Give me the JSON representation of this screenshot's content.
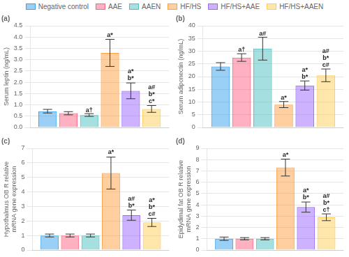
{
  "chart_data": [
    {
      "type": "bar",
      "title": "(a)",
      "ylabel": "Serum leptin (ng/mL)",
      "categories": [
        null
      ],
      "series": [
        {
          "name": "Negative control",
          "color": "#36a2eb",
          "values": [
            0.72
          ],
          "errors": [
            0.08
          ]
        },
        {
          "name": "AAE",
          "color": "#ff6384",
          "values": [
            0.63
          ],
          "errors": [
            0.07
          ]
        },
        {
          "name": "AAEN",
          "color": "#4bc0c0",
          "values": [
            0.55
          ],
          "errors": [
            0.06
          ]
        },
        {
          "name": "HF/HS",
          "color": "#ff9f40",
          "values": [
            3.3
          ],
          "errors": [
            0.6
          ]
        },
        {
          "name": "HF/HS+AAE",
          "color": "#9966ff",
          "values": [
            1.62
          ],
          "errors": [
            0.35
          ]
        },
        {
          "name": "HF/HS+AAEN",
          "color": "#ffcd56",
          "values": [
            0.82
          ],
          "errors": [
            0.15
          ]
        }
      ],
      "ylim": [
        0,
        4.5
      ],
      "yticks": [
        {
          "value": 0,
          "label": "0.0"
        },
        0.5,
        {
          "value": 1,
          "label": "1.0"
        },
        1.5,
        {
          "value": 2,
          "label": "2.0"
        },
        2.5,
        {
          "value": 3,
          "label": "3.0"
        },
        3.5,
        {
          "value": 4,
          "label": "4.0"
        },
        4.5
      ],
      "grid": true,
      "legend": "top",
      "tick_labels": "y",
      "annotations": [
        {
          "text": "a†",
          "series": "AAEN",
          "y": 0.61
        },
        {
          "text": "a*",
          "series": "HF/HS",
          "y": 3.95
        },
        {
          "text": "a*\nb*",
          "series": "HF/HS+AAE",
          "y": 2.02
        },
        {
          "text": "a#\nb*\nc*",
          "series": "HF/HS+AAEN",
          "y": 1.02
        }
      ]
    },
    {
      "type": "bar",
      "title": "(b)",
      "ylabel": "Serum adiponectin (ng/mL)",
      "categories": [
        null
      ],
      "series": [
        {
          "name": "Negative control",
          "color": "#36a2eb",
          "values": [
            24.0
          ],
          "errors": [
            1.5
          ]
        },
        {
          "name": "AAE",
          "color": "#ff6384",
          "values": [
            27.5
          ],
          "errors": [
            1.5
          ]
        },
        {
          "name": "AAEN",
          "color": "#4bc0c0",
          "values": [
            31.0
          ],
          "errors": [
            4.5
          ]
        },
        {
          "name": "HF/HS",
          "color": "#ff9f40",
          "values": [
            9.0
          ],
          "errors": [
            1.2
          ]
        },
        {
          "name": "HF/HS+AAE",
          "color": "#9966ff",
          "values": [
            16.5
          ],
          "errors": [
            1.8
          ]
        },
        {
          "name": "HF/HS+AAEN",
          "color": "#ffcd56",
          "values": [
            20.5
          ],
          "errors": [
            2.5
          ]
        }
      ],
      "ylim": [
        0,
        40
      ],
      "yticks": [
        0,
        5,
        10,
        15,
        20,
        25,
        30,
        35,
        40
      ],
      "grid": true,
      "legend": "top",
      "tick_labels": "y",
      "annotations": [
        {
          "text": "a†",
          "series": "AAE",
          "y": 29.2
        },
        {
          "text": "a#",
          "series": "AAEN",
          "y": 35.7
        },
        {
          "text": "a*",
          "series": "HF/HS",
          "y": 10.3
        },
        {
          "text": "a*\nb*",
          "series": "HF/HS+AAE",
          "y": 18.5
        },
        {
          "text": "a#\nb*\nc#",
          "series": "HF/HS+AAEN",
          "y": 23.2
        }
      ]
    },
    {
      "type": "bar",
      "title": "(c)",
      "ylabel": "Hypothalmus OB R relative\nmRNA gene expression",
      "categories": [
        null
      ],
      "series": [
        {
          "name": "Negative control",
          "color": "#36a2eb",
          "values": [
            1.0
          ],
          "errors": [
            0.1
          ]
        },
        {
          "name": "AAE",
          "color": "#ff6384",
          "values": [
            1.0
          ],
          "errors": [
            0.1
          ]
        },
        {
          "name": "AAEN",
          "color": "#4bc0c0",
          "values": [
            1.0
          ],
          "errors": [
            0.1
          ]
        },
        {
          "name": "HF/HS",
          "color": "#ff9f40",
          "values": [
            5.3
          ],
          "errors": [
            1.1
          ]
        },
        {
          "name": "HF/HS+AAE",
          "color": "#9966ff",
          "values": [
            2.4
          ],
          "errors": [
            0.35
          ]
        },
        {
          "name": "HF/HS+AAEN",
          "color": "#ffcd56",
          "values": [
            1.9
          ],
          "errors": [
            0.28
          ]
        }
      ],
      "ylim": [
        0,
        7
      ],
      "yticks": [
        0,
        1,
        2,
        3,
        4,
        5,
        6,
        7
      ],
      "grid": true,
      "legend": "top",
      "tick_labels": "y",
      "annotations": [
        {
          "text": "a*",
          "series": "HF/HS",
          "y": 6.5
        },
        {
          "text": "a#\nb*",
          "series": "HF/HS+AAE",
          "y": 2.82
        },
        {
          "text": "a*\nb*\nc#",
          "series": "HF/HS+AAEN",
          "y": 2.24
        }
      ]
    },
    {
      "type": "bar",
      "title": "(d)",
      "ylabel": "Epidydimal fat OB R relative\nmRNA gene expression",
      "categories": [
        null
      ],
      "series": [
        {
          "name": "Negative control",
          "color": "#36a2eb",
          "values": [
            1.0
          ],
          "errors": [
            0.15
          ]
        },
        {
          "name": "AAE",
          "color": "#ff6384",
          "values": [
            1.0
          ],
          "errors": [
            0.1
          ]
        },
        {
          "name": "AAEN",
          "color": "#4bc0c0",
          "values": [
            1.0
          ],
          "errors": [
            0.1
          ]
        },
        {
          "name": "HF/HS",
          "color": "#ff9f40",
          "values": [
            7.3
          ],
          "errors": [
            0.75
          ]
        },
        {
          "name": "HF/HS+AAE",
          "color": "#9966ff",
          "values": [
            3.8
          ],
          "errors": [
            0.45
          ]
        },
        {
          "name": "HF/HS+AAEN",
          "color": "#ffcd56",
          "values": [
            2.9
          ],
          "errors": [
            0.3
          ]
        }
      ],
      "ylim": [
        0,
        9
      ],
      "yticks": [
        0,
        1,
        2,
        3,
        4,
        5,
        6,
        7,
        8,
        9
      ],
      "grid": true,
      "legend": "top",
      "tick_labels": "y",
      "annotations": [
        {
          "text": "a*",
          "series": "HF/HS",
          "y": 8.12
        },
        {
          "text": "a*\nb*",
          "series": "HF/HS+AAE",
          "y": 4.35
        },
        {
          "text": "a#\nb*\nc†",
          "series": "HF/HS+AAEN",
          "y": 3.26
        }
      ]
    }
  ]
}
